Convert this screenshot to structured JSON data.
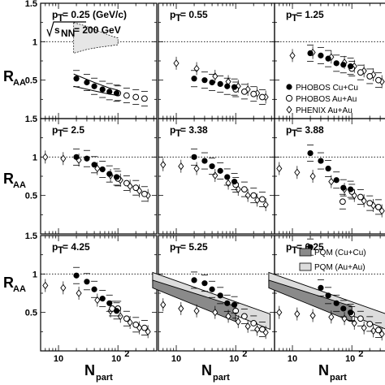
{
  "chart_data": {
    "type": "scatter",
    "ylabel_main": "R",
    "ylabel_sub": "AA",
    "xlabel_main": "N",
    "xlabel_sub": "part",
    "xscale": "log",
    "xlim": [
      5,
      450
    ],
    "ylim": [
      0,
      1.5
    ],
    "x_tick_labels": [
      "10",
      "10"
    ],
    "x_tick_exp": "2",
    "y_tick_labels": [
      "0.5",
      "1",
      "1.5"
    ],
    "energy_label": "s",
    "energy_sub": "NN",
    "energy_value": "= 200 GeV",
    "legend": {
      "phobos_cucu": "PHOBOS Cu+Cu",
      "phobos_auau": "PHOBOS Au+Au",
      "phenix_auau": "PHENIX Au+Au",
      "pqm_cucu": "PQM (Cu+Cu)",
      "pqm_auau": "PQM (Au+Au)"
    },
    "colors": {
      "band_cucu": "#8a8a8a",
      "band_auau": "#dcdcdc",
      "sys_band": "#e6e6e6"
    },
    "panels": [
      {
        "label_main": "p",
        "label_sub": "T",
        "label_value": " = 0.25 (GeV/c)",
        "cucu": [
          [
            20,
            0.52
          ],
          [
            30,
            0.47
          ],
          [
            40,
            0.42
          ],
          [
            55,
            0.38
          ],
          [
            72,
            0.35
          ],
          [
            95,
            0.33
          ]
        ],
        "auau": [
          [
            100,
            0.33
          ],
          [
            140,
            0.3
          ],
          [
            200,
            0.28
          ],
          [
            280,
            0.26
          ]
        ],
        "phenix": []
      },
      {
        "label_main": "p",
        "label_sub": "T",
        "label_value": " = 0.55",
        "cucu": [
          [
            20,
            0.52
          ],
          [
            30,
            0.5
          ],
          [
            40,
            0.47
          ],
          [
            55,
            0.45
          ],
          [
            72,
            0.42
          ],
          [
            95,
            0.41
          ]
        ],
        "auau": [
          [
            100,
            0.38
          ],
          [
            140,
            0.35
          ],
          [
            200,
            0.32
          ],
          [
            280,
            0.28
          ]
        ],
        "phenix": [
          [
            10,
            0.72
          ],
          [
            22,
            0.65
          ],
          [
            45,
            0.55
          ],
          [
            75,
            0.48
          ],
          [
            110,
            0.42
          ],
          [
            160,
            0.38
          ],
          [
            230,
            0.33
          ],
          [
            320,
            0.28
          ]
        ]
      },
      {
        "label_main": "p",
        "label_sub": "T",
        "label_value": " = 1.25",
        "cucu": [
          [
            20,
            0.85
          ],
          [
            30,
            0.82
          ],
          [
            40,
            0.78
          ],
          [
            55,
            0.72
          ],
          [
            72,
            0.7
          ],
          [
            95,
            0.68
          ]
        ],
        "auau": [
          [
            100,
            0.65
          ],
          [
            140,
            0.6
          ],
          [
            200,
            0.55
          ],
          [
            280,
            0.5
          ]
        ],
        "phenix": [
          [
            10,
            0.82
          ],
          [
            22,
            0.86
          ],
          [
            45,
            0.8
          ],
          [
            75,
            0.73
          ],
          [
            110,
            0.68
          ],
          [
            160,
            0.62
          ],
          [
            230,
            0.57
          ],
          [
            320,
            0.48
          ]
        ]
      },
      {
        "label_main": "p",
        "label_sub": "T",
        "label_value": " = 2.5",
        "cucu": [
          [
            20,
            1.0
          ],
          [
            30,
            0.98
          ],
          [
            40,
            0.9
          ],
          [
            55,
            0.84
          ],
          [
            72,
            0.78
          ],
          [
            95,
            0.74
          ]
        ],
        "auau": [
          [
            100,
            0.72
          ],
          [
            140,
            0.66
          ],
          [
            200,
            0.6
          ],
          [
            280,
            0.52
          ]
        ],
        "phenix": [
          [
            6,
            1.0
          ],
          [
            12,
            0.98
          ],
          [
            22,
            0.96
          ],
          [
            45,
            0.85
          ],
          [
            75,
            0.76
          ],
          [
            110,
            0.7
          ],
          [
            160,
            0.62
          ],
          [
            230,
            0.56
          ],
          [
            320,
            0.5
          ]
        ]
      },
      {
        "label_main": "p",
        "label_sub": "T",
        "label_value": " = 3.38",
        "cucu": [
          [
            20,
            1.0
          ],
          [
            30,
            0.95
          ],
          [
            40,
            0.88
          ],
          [
            55,
            0.82
          ],
          [
            72,
            0.74
          ],
          [
            95,
            0.68
          ]
        ],
        "auau": [
          [
            100,
            0.64
          ],
          [
            140,
            0.58
          ],
          [
            200,
            0.5
          ],
          [
            280,
            0.45
          ]
        ],
        "phenix": [
          [
            6,
            0.9
          ],
          [
            12,
            0.88
          ],
          [
            22,
            0.85
          ],
          [
            45,
            0.76
          ],
          [
            75,
            0.66
          ],
          [
            110,
            0.58
          ],
          [
            160,
            0.5
          ],
          [
            230,
            0.44
          ],
          [
            320,
            0.38
          ]
        ]
      },
      {
        "label_main": "p",
        "label_sub": "T",
        "label_value": " = 3.88",
        "cucu": [
          [
            20,
            1.05
          ],
          [
            30,
            0.95
          ],
          [
            40,
            0.85
          ],
          [
            55,
            0.7
          ],
          [
            72,
            0.6
          ],
          [
            95,
            0.58
          ]
        ],
        "auau": [
          [
            70,
            0.42
          ],
          [
            100,
            0.55
          ],
          [
            140,
            0.48
          ],
          [
            200,
            0.4
          ],
          [
            280,
            0.35
          ]
        ],
        "phenix": [
          [
            6,
            0.85
          ],
          [
            12,
            0.8
          ],
          [
            22,
            0.75
          ],
          [
            45,
            0.68
          ],
          [
            75,
            0.58
          ],
          [
            110,
            0.5
          ],
          [
            160,
            0.43
          ],
          [
            230,
            0.37
          ],
          [
            320,
            0.3
          ]
        ]
      },
      {
        "label_main": "p",
        "label_sub": "T",
        "label_value": " = 4.25",
        "cucu": [
          [
            20,
            0.98
          ],
          [
            30,
            0.9
          ],
          [
            40,
            0.8
          ],
          [
            55,
            0.68
          ],
          [
            72,
            0.62
          ],
          [
            95,
            0.52
          ]
        ],
        "auau": [
          [
            80,
            0.55
          ],
          [
            100,
            0.55
          ],
          [
            140,
            0.42
          ],
          [
            200,
            0.34
          ],
          [
            280,
            0.3
          ]
        ],
        "phenix": [
          [
            6,
            0.85
          ],
          [
            12,
            0.82
          ],
          [
            22,
            0.75
          ],
          [
            45,
            0.66
          ],
          [
            75,
            0.52
          ],
          [
            110,
            0.45
          ],
          [
            160,
            0.37
          ],
          [
            230,
            0.3
          ],
          [
            320,
            0.25
          ]
        ]
      },
      {
        "label_main": "p",
        "label_sub": "T",
        "label_value": " = 5.25",
        "cucu": [
          [
            20,
            0.92
          ],
          [
            30,
            0.88
          ],
          [
            40,
            0.8
          ],
          [
            55,
            0.72
          ],
          [
            72,
            0.62
          ],
          [
            95,
            0.6
          ]
        ],
        "auau": [
          [
            100,
            0.52
          ],
          [
            140,
            0.45
          ],
          [
            200,
            0.36
          ],
          [
            280,
            0.28
          ]
        ],
        "phenix": [
          [
            6,
            0.6
          ],
          [
            12,
            0.55
          ],
          [
            22,
            0.52
          ],
          [
            45,
            0.5
          ],
          [
            75,
            0.45
          ],
          [
            110,
            0.38
          ],
          [
            160,
            0.32
          ],
          [
            230,
            0.28
          ],
          [
            320,
            0.24
          ]
        ]
      },
      {
        "label_main": "p",
        "label_sub": "T",
        "label_value": " = 6.25",
        "cucu": [
          [
            20,
            1.35
          ],
          [
            30,
            0.82
          ],
          [
            40,
            0.72
          ],
          [
            55,
            0.62
          ],
          [
            72,
            0.55
          ],
          [
            95,
            0.5
          ]
        ],
        "auau": [
          [
            100,
            0.48
          ],
          [
            140,
            0.42
          ],
          [
            200,
            0.35
          ],
          [
            280,
            0.27
          ]
        ],
        "phenix": [
          [
            6,
            0.5
          ],
          [
            12,
            0.48
          ],
          [
            22,
            0.46
          ],
          [
            45,
            0.44
          ],
          [
            75,
            0.42
          ],
          [
            110,
            0.36
          ],
          [
            160,
            0.3
          ],
          [
            230,
            0.26
          ],
          [
            320,
            0.22
          ]
        ]
      }
    ]
  }
}
